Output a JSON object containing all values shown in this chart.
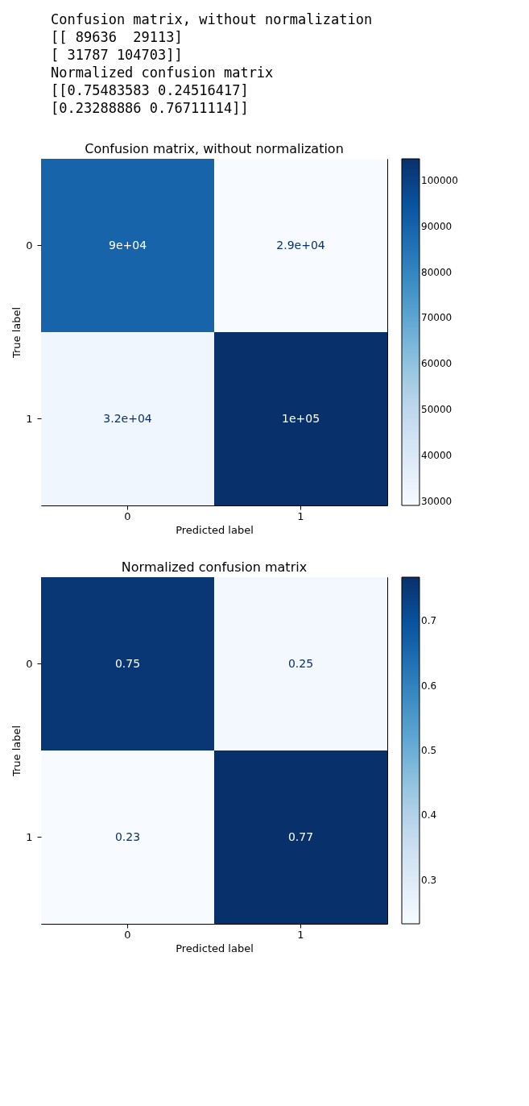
{
  "chart_data": [
    {
      "type": "other",
      "annotations": [
        "Confusion matrix, without normalization",
        "[[ 89636  29113]",
        " [ 31787 104703]]",
        "Normalized confusion matrix",
        "[[0.75483583 0.24516417]",
        " [0.23288886 0.76711114]]"
      ]
    },
    {
      "type": "heatmap",
      "title": "Confusion matrix, without normalization",
      "xlabel": "Predicted label",
      "ylabel": "True label",
      "categories": [
        "0",
        "1"
      ],
      "y_categories": [
        "0",
        "1"
      ],
      "cells": [
        [
          89636,
          29113
        ],
        [
          31787,
          104703
        ]
      ],
      "cell_labels": [
        [
          "9e+04",
          "2.9e+04"
        ],
        [
          "3.2e+04",
          "1e+05"
        ]
      ],
      "clim": [
        29113,
        104703
      ],
      "cticks": [
        30000,
        40000,
        50000,
        60000,
        70000,
        80000,
        90000,
        100000
      ]
    },
    {
      "type": "heatmap",
      "title": "Normalized confusion matrix",
      "xlabel": "Predicted label",
      "ylabel": "True label",
      "categories": [
        "0",
        "1"
      ],
      "y_categories": [
        "0",
        "1"
      ],
      "cells": [
        [
          0.75483583,
          0.24516417
        ],
        [
          0.23288886,
          0.76711114
        ]
      ],
      "cell_labels": [
        [
          "0.75",
          "0.25"
        ],
        [
          "0.23",
          "0.77"
        ]
      ],
      "clim": [
        0.23288886,
        0.76711114
      ],
      "cticks": [
        0.3,
        0.4,
        0.5,
        0.6,
        0.7
      ]
    }
  ]
}
